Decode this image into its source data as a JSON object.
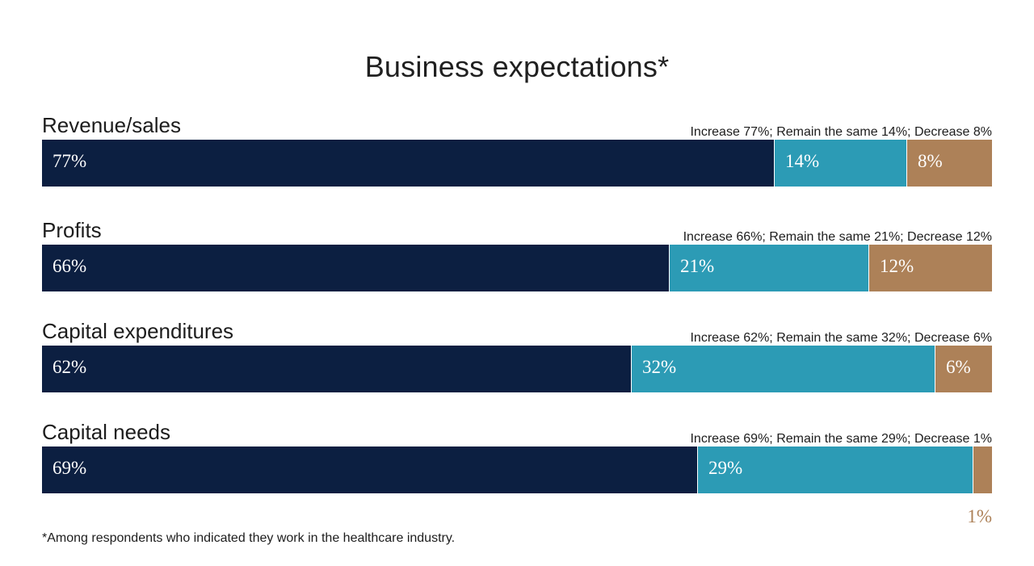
{
  "chart_data": {
    "type": "bar",
    "orientation": "horizontal",
    "stacked": true,
    "title": "Business expectations*",
    "xlim": [
      0,
      100
    ],
    "categories": [
      "Revenue/sales",
      "Profits",
      "Capital expenditures",
      "Capital needs"
    ],
    "series": [
      {
        "name": "Increase",
        "values": [
          77,
          66,
          62,
          69
        ]
      },
      {
        "name": "Remain the same",
        "values": [
          14,
          21,
          32,
          29
        ]
      },
      {
        "name": "Decrease",
        "values": [
          8,
          12,
          6,
          1
        ]
      }
    ],
    "row_summaries": [
      "Increase 77%; Remain the same 14%; Decrease 8%",
      "Increase 66%; Remain the same 21%; Decrease 12%",
      "Increase 62%; Remain the same 32%; Decrease 6%",
      "Increase 69%; Remain the same 29%; Decrease 1%"
    ],
    "segment_labels": [
      [
        "77%",
        "14%",
        "8%"
      ],
      [
        "66%",
        "21%",
        "12%"
      ],
      [
        "62%",
        "32%",
        "6%"
      ],
      [
        "69%",
        "29%",
        "1%"
      ]
    ],
    "colors": [
      "#0c1f41",
      "#2c9bb5",
      "#ad8158"
    ],
    "grid": false,
    "legend": "none"
  },
  "footnote": "*Among respondents who indicated they work in the healthcare industry."
}
